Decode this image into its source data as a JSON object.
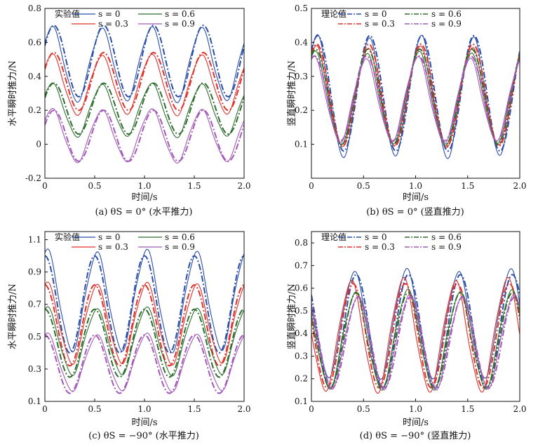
{
  "figure": {
    "legend": {
      "experimental_title": "实验值",
      "theory_title": "理论值",
      "entries": [
        "s = 0",
        "s = 0.3",
        "s = 0.6",
        "s = 0.9"
      ]
    },
    "colors": {
      "s0": "#2b4ea8",
      "s03": "#e0302a",
      "s06": "#2f6e2f",
      "s09": "#a259b8"
    }
  },
  "chart_data": [
    {
      "type": "line",
      "panel": "a",
      "caption": "(a) θS = 0° (水平推力)",
      "xlabel": "时间/s",
      "ylabel": "水平瞬时推力/N",
      "xlim": [
        0,
        2.0
      ],
      "ylim": [
        -0.2,
        0.8
      ],
      "xticks": [
        "0",
        "0.5",
        "1.0",
        "1.5",
        "2.0"
      ],
      "yticks": [
        "-0.2",
        "0",
        "0.2",
        "0.4",
        "0.6",
        "0.8"
      ],
      "legend_title": "实验值",
      "legend_position": "top",
      "series": [
        {
          "name": "s = 0",
          "kind": "experimental",
          "offset": 0.47,
          "amplitude": 0.21,
          "phase": 0.07
        },
        {
          "name": "s = 0",
          "kind": "theory",
          "offset": 0.49,
          "amplitude": 0.21,
          "phase": 0.09
        },
        {
          "name": "s = 0.3",
          "kind": "experimental",
          "offset": 0.35,
          "amplitude": 0.17,
          "phase": 0.07
        },
        {
          "name": "s = 0.3",
          "kind": "theory",
          "offset": 0.37,
          "amplitude": 0.17,
          "phase": 0.09
        },
        {
          "name": "s = 0.6",
          "kind": "experimental",
          "offset": 0.2,
          "amplitude": 0.15,
          "phase": 0.07
        },
        {
          "name": "s = 0.6",
          "kind": "theory",
          "offset": 0.21,
          "amplitude": 0.15,
          "phase": 0.09
        },
        {
          "name": "s = 0.9",
          "kind": "experimental",
          "offset": 0.05,
          "amplitude": 0.15,
          "phase": 0.07
        },
        {
          "name": "s = 0.9",
          "kind": "theory",
          "offset": 0.05,
          "amplitude": 0.15,
          "phase": 0.09
        }
      ]
    },
    {
      "type": "line",
      "panel": "b",
      "caption": "(b) θS = 0° (竖直推力)",
      "xlabel": "时间/s",
      "ylabel": "竖直瞬时推力/N",
      "xlim": [
        0,
        2.0
      ],
      "ylim": [
        0.0,
        0.5
      ],
      "xticks": [
        "0",
        "0.5",
        "1.0",
        "1.5",
        "2.0"
      ],
      "yticks": [
        "0.1",
        "0.2",
        "0.3",
        "0.4",
        "0.5"
      ],
      "legend_title": "理论值",
      "legend_position": "top",
      "series": [
        {
          "name": "s = 0",
          "kind": "experimental",
          "offset": 0.24,
          "amplitude": 0.17,
          "phase": 0.05
        },
        {
          "name": "s = 0",
          "kind": "theory",
          "offset": 0.25,
          "amplitude": 0.17,
          "phase": 0.06
        },
        {
          "name": "s = 0.3",
          "kind": "experimental",
          "offset": 0.24,
          "amplitude": 0.14,
          "phase": 0.04
        },
        {
          "name": "s = 0.3",
          "kind": "theory",
          "offset": 0.245,
          "amplitude": 0.15,
          "phase": 0.05
        },
        {
          "name": "s = 0.6",
          "kind": "experimental",
          "offset": 0.235,
          "amplitude": 0.13,
          "phase": 0.03
        },
        {
          "name": "s = 0.6",
          "kind": "theory",
          "offset": 0.24,
          "amplitude": 0.14,
          "phase": 0.04
        },
        {
          "name": "s = 0.9",
          "kind": "experimental",
          "offset": 0.23,
          "amplitude": 0.12,
          "phase": 0.02
        },
        {
          "name": "s = 0.9",
          "kind": "theory",
          "offset": 0.235,
          "amplitude": 0.125,
          "phase": 0.03
        }
      ]
    },
    {
      "type": "line",
      "panel": "c",
      "caption": "(c) θS = −90° (水平推力)",
      "xlabel": "时间/s",
      "ylabel": "水平瞬时推力/N",
      "xlim": [
        0,
        2.0
      ],
      "ylim": [
        0.1,
        1.15
      ],
      "xticks": [
        "0",
        "0.5",
        "1.0",
        "1.5",
        "2.0"
      ],
      "yticks": [
        "0.1",
        "0.3",
        "0.5",
        "0.7",
        "0.9",
        "1.1"
      ],
      "legend_title": "实验值",
      "legend_position": "top",
      "series": [
        {
          "name": "s = 0",
          "kind": "experimental",
          "offset": 0.72,
          "amplitude": 0.3,
          "phase": 0.02
        },
        {
          "name": "s = 0",
          "kind": "theory",
          "offset": 0.7,
          "amplitude": 0.3,
          "phase": 0.0
        },
        {
          "name": "s = 0.3",
          "kind": "experimental",
          "offset": 0.58,
          "amplitude": 0.24,
          "phase": 0.02
        },
        {
          "name": "s = 0.3",
          "kind": "theory",
          "offset": 0.57,
          "amplitude": 0.25,
          "phase": 0.0
        },
        {
          "name": "s = 0.6",
          "kind": "experimental",
          "offset": 0.47,
          "amplitude": 0.2,
          "phase": 0.02
        },
        {
          "name": "s = 0.6",
          "kind": "theory",
          "offset": 0.46,
          "amplitude": 0.21,
          "phase": 0.0
        },
        {
          "name": "s = 0.9",
          "kind": "experimental",
          "offset": 0.34,
          "amplitude": 0.17,
          "phase": 0.02
        },
        {
          "name": "s = 0.9",
          "kind": "theory",
          "offset": 0.33,
          "amplitude": 0.18,
          "phase": 0.0
        }
      ]
    },
    {
      "type": "line",
      "panel": "d",
      "caption": "(d) θS = −90° (竖直推力)",
      "xlabel": "时间/s",
      "ylabel": "竖直瞬时推力/N",
      "xlim": [
        0,
        2.0
      ],
      "ylim": [
        0.1,
        0.85
      ],
      "xticks": [
        "0",
        "0.5",
        "1.0",
        "1.5",
        "2.0"
      ],
      "yticks": [
        "0.1",
        "0.2",
        "0.3",
        "0.4",
        "0.5",
        "0.6",
        "0.7",
        "0.8"
      ],
      "legend_title": "理论值",
      "legend_position": "top",
      "series": [
        {
          "name": "s = 0",
          "kind": "experimental",
          "offset": 0.44,
          "amplitude": 0.23,
          "phase": -0.09
        },
        {
          "name": "s = 0",
          "kind": "theory",
          "offset": 0.41,
          "amplitude": 0.25,
          "phase": -0.07
        },
        {
          "name": "s = 0.3",
          "kind": "experimental",
          "offset": 0.39,
          "amplitude": 0.24,
          "phase": -0.12
        },
        {
          "name": "s = 0.3",
          "kind": "theory",
          "offset": 0.39,
          "amplitude": 0.23,
          "phase": -0.1
        },
        {
          "name": "s = 0.6",
          "kind": "experimental",
          "offset": 0.37,
          "amplitude": 0.21,
          "phase": -0.08
        },
        {
          "name": "s = 0.6",
          "kind": "theory",
          "offset": 0.37,
          "amplitude": 0.21,
          "phase": -0.07
        },
        {
          "name": "s = 0.9",
          "kind": "experimental",
          "offset": 0.36,
          "amplitude": 0.2,
          "phase": -0.06
        },
        {
          "name": "s = 0.9",
          "kind": "theory",
          "offset": 0.36,
          "amplitude": 0.2,
          "phase": -0.05
        }
      ]
    }
  ]
}
